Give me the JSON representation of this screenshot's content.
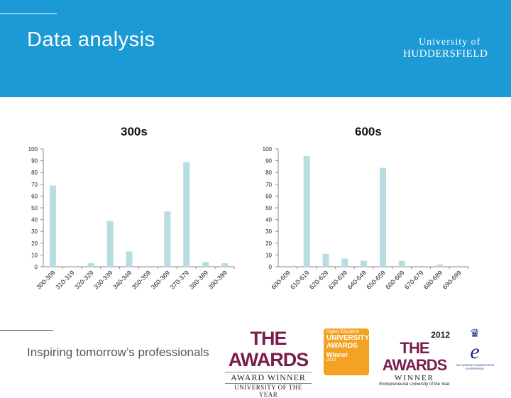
{
  "header": {
    "title": "Data analysis",
    "university_of": "University of",
    "university_name": "HUDDERSFIELD"
  },
  "footer": {
    "tagline": "Inspiring tomorrow’s professionals",
    "awards": {
      "the_awards_1": {
        "big": "THE AWARDS",
        "mid": "AWARD WINNER",
        "sub": "UNIVERSITY OF THE YEAR"
      },
      "gold_badge": {
        "a": "Higher Education",
        "b": "UNIVERSITY AWARDS",
        "c": "Winner",
        "d": "2013"
      },
      "the_awards_2": {
        "year": "2012",
        "big": "THE AWARDS",
        "mid": "WINNER",
        "sub": "Entrepreneurial University of the Year"
      },
      "queens": {
        "crown": "♛",
        "e": "e",
        "sub": "THE QUEEN'S AWARDS FOR ENTERPRISE"
      }
    }
  },
  "colors": {
    "header_bg": "#1c9ad6",
    "bar_fill": "#b7dde2",
    "axis": "#888888"
  },
  "chart_data": [
    {
      "type": "bar",
      "title": "300s",
      "categories": [
        "300-309",
        "310-319",
        "320-329",
        "330-339",
        "340-349",
        "350-359",
        "360-369",
        "370-379",
        "380-389",
        "390-399"
      ],
      "values": [
        69,
        0,
        3,
        39,
        13,
        0,
        47,
        89,
        4,
        3
      ],
      "ylim": [
        0,
        100
      ],
      "yticks": [
        0,
        10,
        20,
        30,
        40,
        50,
        60,
        70,
        80,
        90,
        100
      ],
      "grid": false,
      "legend": "none"
    },
    {
      "type": "bar",
      "title": "600s",
      "categories": [
        "600-609",
        "610-619",
        "620-629",
        "630-639",
        "640-649",
        "650-659",
        "660-669",
        "670-679",
        "680-689",
        "690-699"
      ],
      "values": [
        0,
        94,
        11,
        7,
        5,
        84,
        5,
        0,
        2,
        0
      ],
      "ylim": [
        0,
        100
      ],
      "yticks": [
        0,
        10,
        20,
        30,
        40,
        50,
        60,
        70,
        80,
        90,
        100
      ],
      "grid": false,
      "legend": "none"
    }
  ]
}
